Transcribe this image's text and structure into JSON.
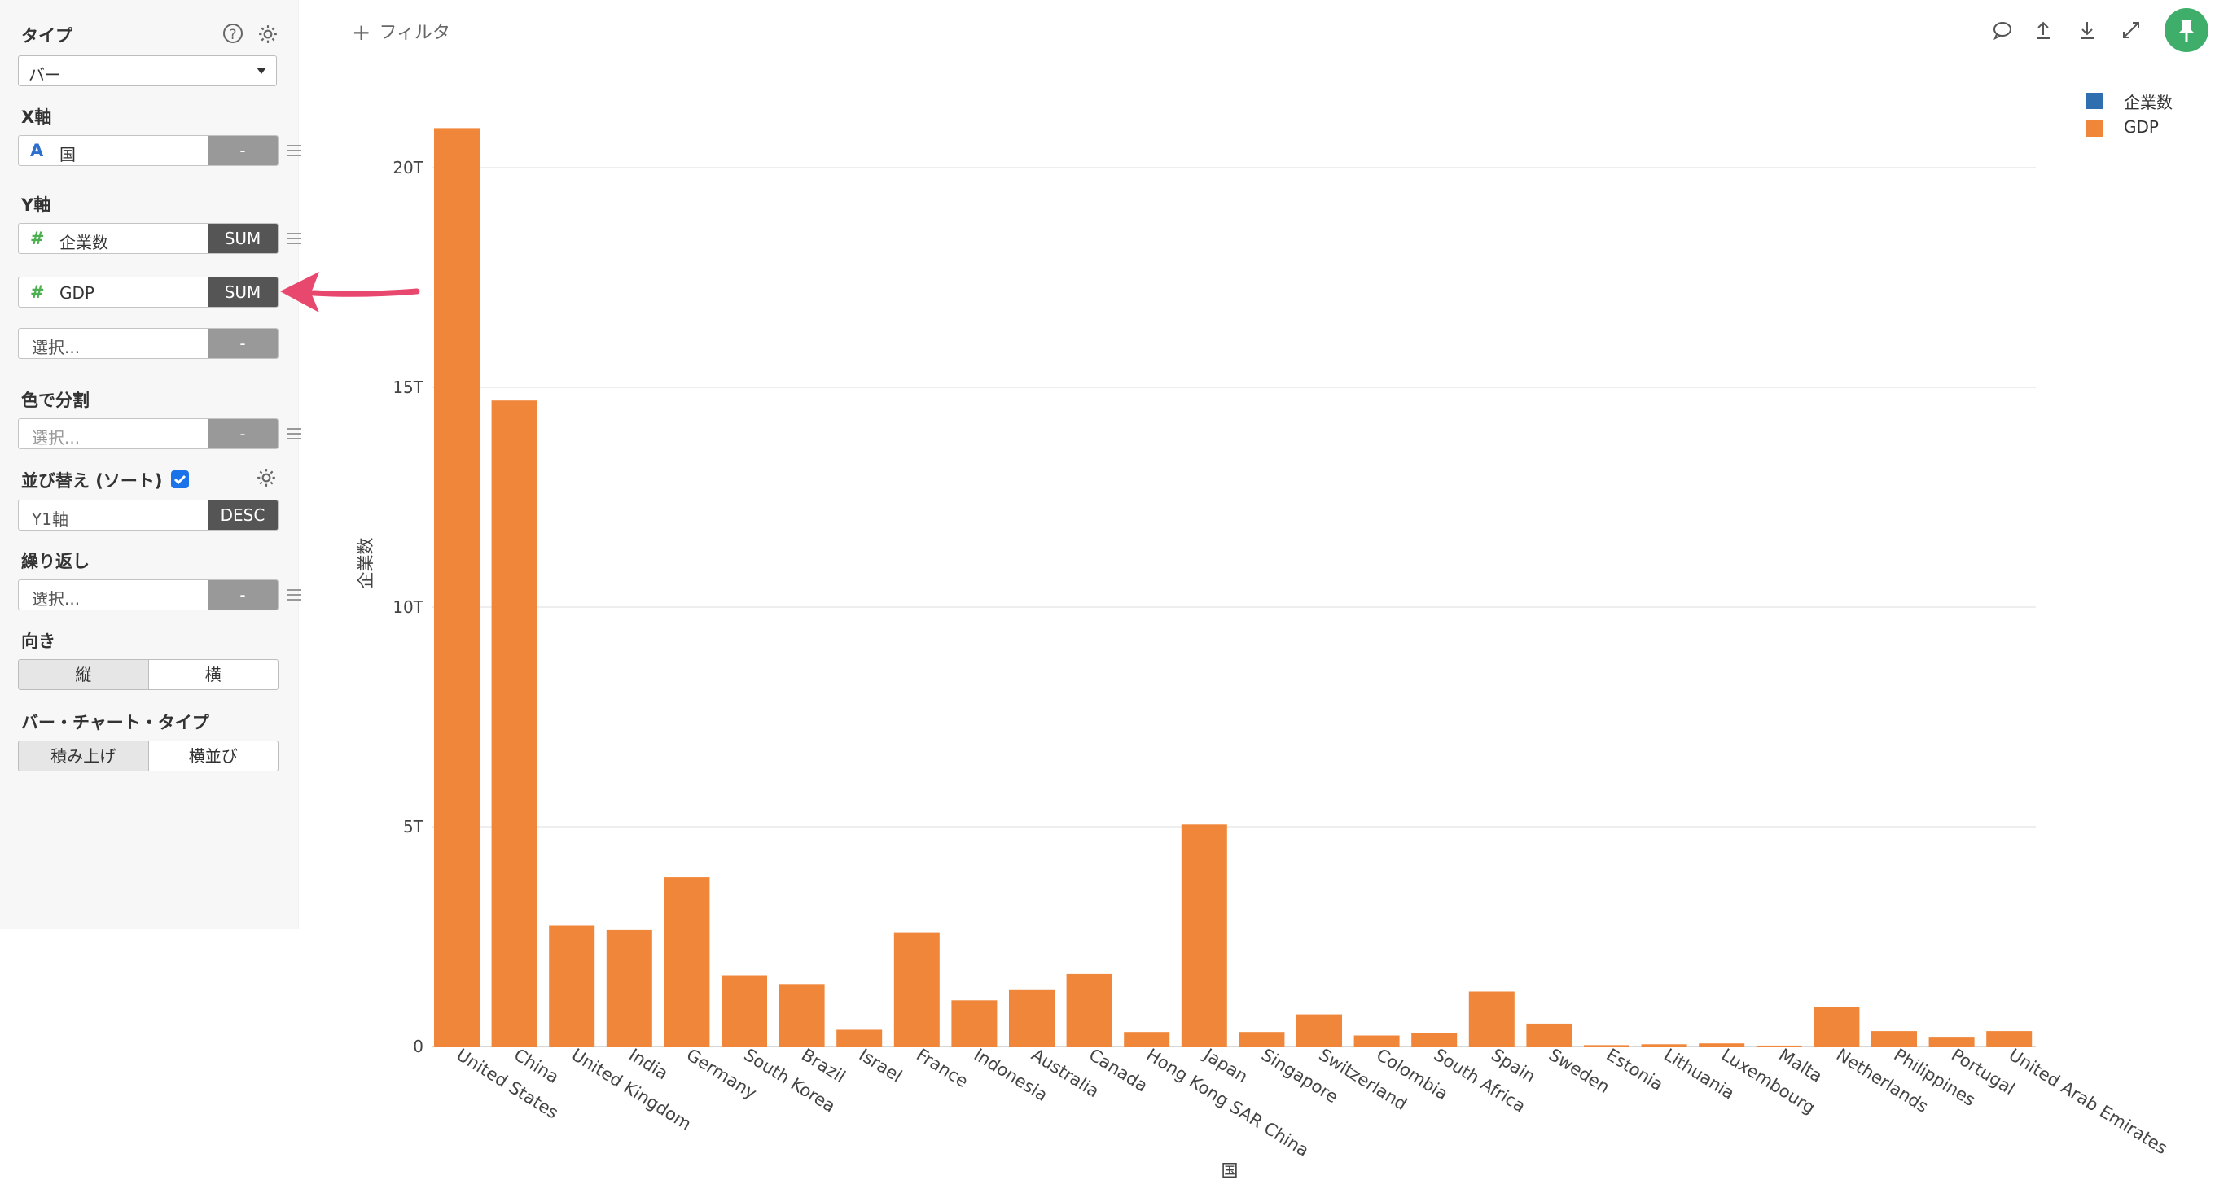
{
  "sidebar": {
    "type_label": "タイプ",
    "type_value": "バー",
    "x_axis_label": "X軸",
    "x_field": {
      "icon": "A",
      "name": "国",
      "agg": "-"
    },
    "y_axis_label": "Y軸",
    "y_fields": [
      {
        "icon": "#",
        "name": "企業数",
        "agg": "SUM"
      },
      {
        "icon": "#",
        "name": "GDP",
        "agg": "SUM"
      }
    ],
    "y_add_placeholder": "選択...",
    "y_add_agg": "-",
    "color_label": "色で分割",
    "color_placeholder": "選択...",
    "color_agg": "-",
    "sort_label": "並び替え (ソート)",
    "sort_checked": true,
    "sort_field": "Y1軸",
    "sort_order": "DESC",
    "repeat_label": "繰り返し",
    "repeat_placeholder": "選択...",
    "repeat_agg": "-",
    "direction_label": "向き",
    "direction_options": [
      "縦",
      "横"
    ],
    "bar_type_label": "バー・チャート・タイプ",
    "bar_type_options": [
      "積み上げ",
      "横並び"
    ]
  },
  "toolbar": {
    "filter_label": "フィルタ",
    "icons": [
      "comment-icon",
      "upload-icon",
      "download-icon",
      "expand-icon",
      "pin-icon"
    ]
  },
  "colors": {
    "gdp": "#f0863a",
    "companies": "#2f6fb0",
    "pin": "#3fae6a",
    "arrow": "#e8476e"
  },
  "chart_data": {
    "type": "bar",
    "categories": [
      "United States",
      "China",
      "United Kingdom",
      "India",
      "Germany",
      "South Korea",
      "Brazil",
      "Israel",
      "France",
      "Indonesia",
      "Australia",
      "Canada",
      "Hong Kong SAR China",
      "Japan",
      "Singapore",
      "Switzerland",
      "Colombia",
      "South Africa",
      "Spain",
      "Sweden",
      "Estonia",
      "Lithuania",
      "Luxembourg",
      "Malta",
      "Netherlands",
      "Philippines",
      "Portugal",
      "United Arab Emirates"
    ],
    "series": [
      {
        "name": "企業数",
        "values": [
          0,
          0,
          0,
          0,
          0,
          0,
          0,
          0,
          0,
          0,
          0,
          0,
          0,
          0,
          0,
          0,
          0,
          0,
          0,
          0,
          0,
          0,
          0,
          0,
          0,
          0,
          0,
          0
        ]
      },
      {
        "name": "GDP",
        "values": [
          20.9,
          14.7,
          2.75,
          2.65,
          3.85,
          1.62,
          1.42,
          0.38,
          2.6,
          1.05,
          1.3,
          1.65,
          0.33,
          5.05,
          0.33,
          0.73,
          0.25,
          0.3,
          1.25,
          0.52,
          0.03,
          0.05,
          0.07,
          0.02,
          0.9,
          0.35,
          0.22,
          0.35
        ]
      }
    ],
    "xlabel": "国",
    "ylabel": "企業数",
    "yticks": [
      "0",
      "5T",
      "10T",
      "15T",
      "20T"
    ],
    "ytick_values": [
      0,
      5,
      10,
      15,
      20
    ],
    "ylim": [
      0,
      21.5
    ],
    "grid": true,
    "legend": "top-right"
  }
}
